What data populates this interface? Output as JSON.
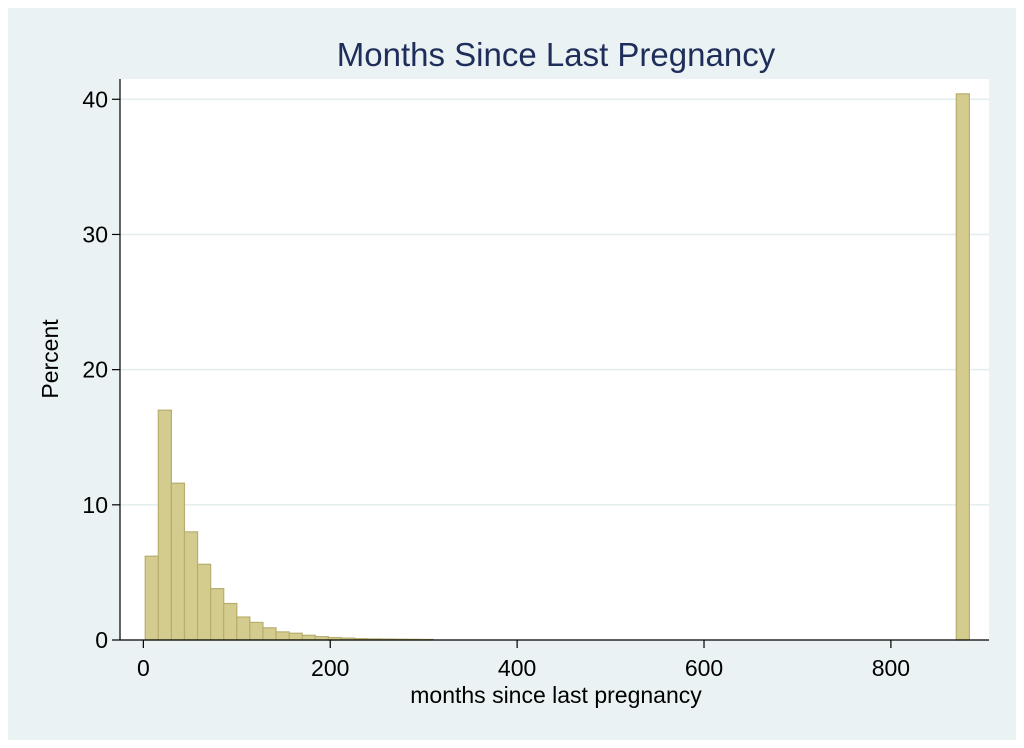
{
  "chart_data": {
    "type": "bar",
    "title": "Months Since Last Pregnancy",
    "xlabel": "months since last pregnancy",
    "ylabel": "Percent",
    "xlim": [
      -25,
      905
    ],
    "ylim": [
      0,
      41.5
    ],
    "xticks": [
      0,
      200,
      400,
      600,
      800
    ],
    "yticks": [
      0,
      10,
      20,
      30,
      40
    ],
    "grid": true,
    "bin_width": 14,
    "bins": [
      {
        "x0": 2,
        "value": 6.2
      },
      {
        "x0": 16,
        "value": 17.0
      },
      {
        "x0": 30,
        "value": 11.6
      },
      {
        "x0": 44,
        "value": 8.0
      },
      {
        "x0": 58,
        "value": 5.6
      },
      {
        "x0": 72,
        "value": 3.8
      },
      {
        "x0": 86,
        "value": 2.7
      },
      {
        "x0": 100,
        "value": 1.7
      },
      {
        "x0": 114,
        "value": 1.3
      },
      {
        "x0": 128,
        "value": 0.9
      },
      {
        "x0": 142,
        "value": 0.6
      },
      {
        "x0": 156,
        "value": 0.5
      },
      {
        "x0": 170,
        "value": 0.35
      },
      {
        "x0": 184,
        "value": 0.25
      },
      {
        "x0": 198,
        "value": 0.18
      },
      {
        "x0": 212,
        "value": 0.14
      },
      {
        "x0": 226,
        "value": 0.1
      },
      {
        "x0": 240,
        "value": 0.08
      },
      {
        "x0": 254,
        "value": 0.07
      },
      {
        "x0": 268,
        "value": 0.06
      },
      {
        "x0": 282,
        "value": 0.05
      },
      {
        "x0": 296,
        "value": 0.04
      },
      {
        "x0": 870,
        "value": 40.4
      }
    ],
    "colors": {
      "bar_fill": "#d4cc8e",
      "bar_stroke": "#b7ae6e",
      "grid": "#e3ecee",
      "title": "#1e2d5a",
      "panel": "#eaf2f3"
    }
  }
}
